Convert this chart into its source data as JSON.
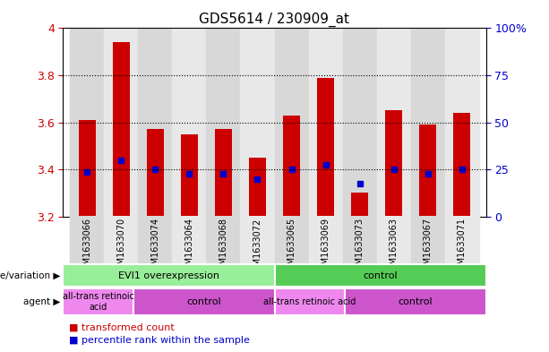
{
  "title": "GDS5614 / 230909_at",
  "samples": [
    "GSM1633066",
    "GSM1633070",
    "GSM1633074",
    "GSM1633064",
    "GSM1633068",
    "GSM1633072",
    "GSM1633065",
    "GSM1633069",
    "GSM1633073",
    "GSM1633063",
    "GSM1633067",
    "GSM1633071"
  ],
  "bar_values": [
    3.61,
    3.94,
    3.57,
    3.55,
    3.57,
    3.45,
    3.63,
    3.79,
    3.3,
    3.65,
    3.59,
    3.64
  ],
  "bar_bottom": 3.2,
  "percentile_values": [
    3.39,
    3.44,
    3.4,
    3.38,
    3.38,
    3.36,
    3.4,
    3.42,
    3.34,
    3.4,
    3.38,
    3.4
  ],
  "ylim": [
    3.2,
    4.0
  ],
  "yticks": [
    3.2,
    3.4,
    3.6,
    3.8,
    4.0
  ],
  "right_yticks_pct": [
    0,
    25,
    50,
    75,
    100
  ],
  "right_ytick_labels": [
    "0",
    "25",
    "50",
    "75",
    "100%"
  ],
  "bar_color": "#cc0000",
  "percentile_color": "#0000cc",
  "col_bg_even": "#d8d8d8",
  "col_bg_odd": "#e8e8e8",
  "title_fontsize": 11,
  "genotype_groups": [
    {
      "label": "EVI1 overexpression",
      "start": 0,
      "end": 6,
      "color": "#99ee99"
    },
    {
      "label": "control",
      "start": 6,
      "end": 12,
      "color": "#55cc55"
    }
  ],
  "agent_groups": [
    {
      "label": "all-trans retinoic\nacid",
      "start": 0,
      "end": 2,
      "color": "#ee88ee"
    },
    {
      "label": "control",
      "start": 2,
      "end": 6,
      "color": "#cc55cc"
    },
    {
      "label": "all-trans retinoic acid",
      "start": 6,
      "end": 8,
      "color": "#ee88ee"
    },
    {
      "label": "control",
      "start": 8,
      "end": 12,
      "color": "#cc55cc"
    }
  ],
  "genotype_label": "genotype/variation",
  "agent_label": "agent",
  "legend_items": [
    {
      "color": "#cc0000",
      "label": "transformed count"
    },
    {
      "color": "#0000cc",
      "label": "percentile rank within the sample"
    }
  ],
  "tick_color_left": "#cc0000",
  "tick_color_right": "#0000cc",
  "bar_width": 0.5,
  "yticklabels": [
    "3.2",
    "3.4",
    "3.6",
    "3.8",
    "4"
  ]
}
